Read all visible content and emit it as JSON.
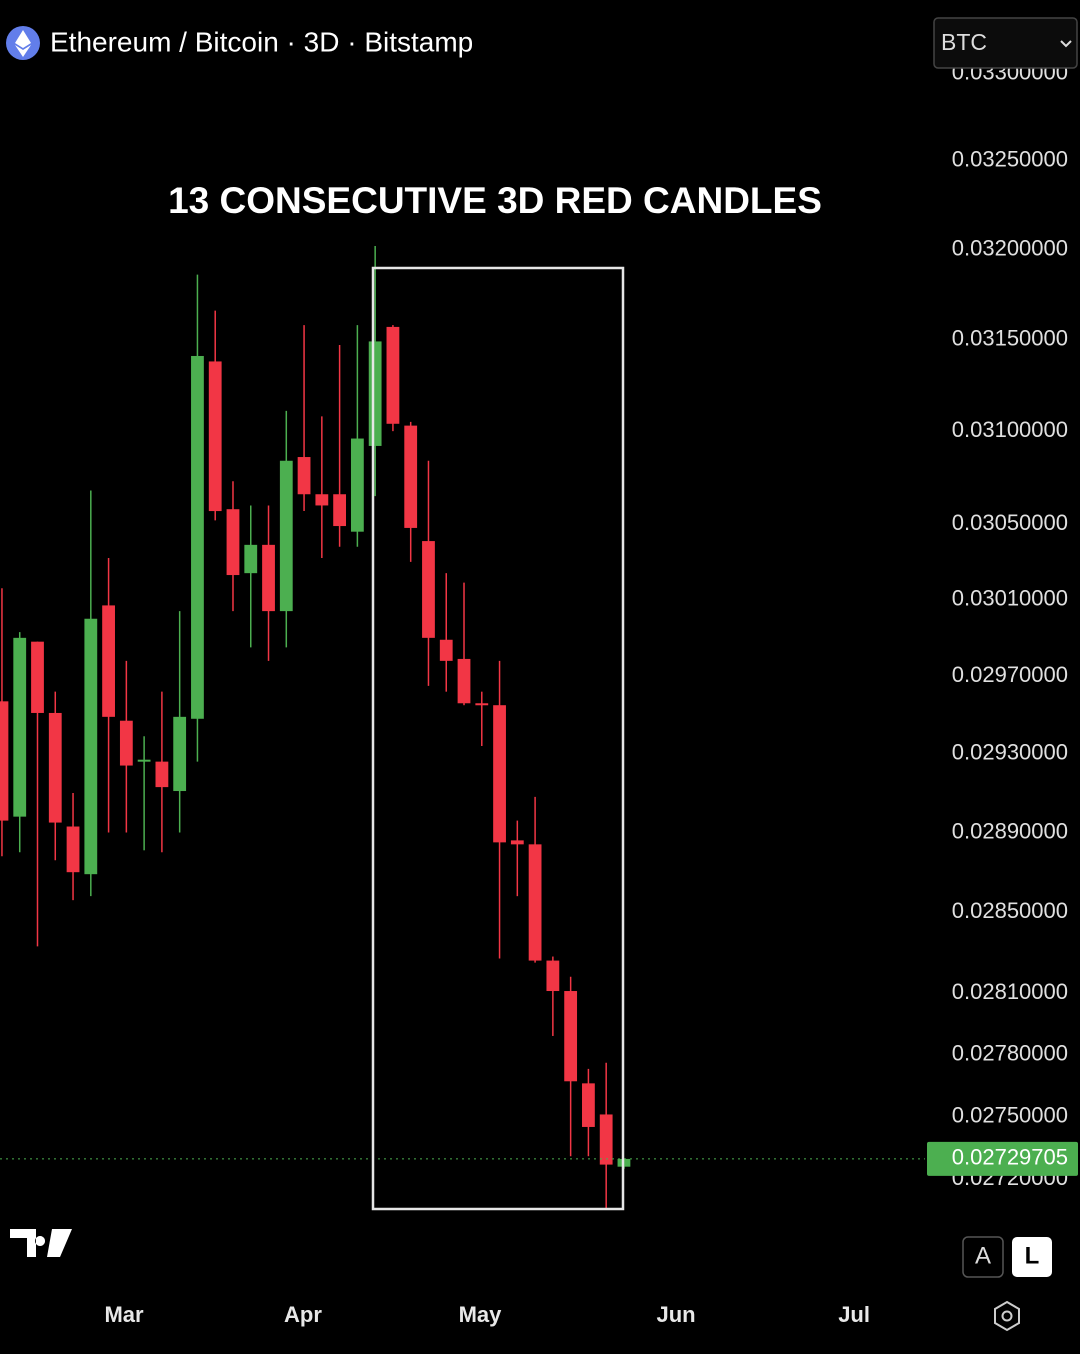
{
  "header": {
    "symbol": "Ethereum / Bitcoin · 3D · Bitstamp",
    "currency": "BTC"
  },
  "chart_data": {
    "type": "candlestick",
    "annotation": "13 CONSECUTIVE 3D RED CANDLES",
    "categories": [
      null,
      null,
      null,
      null,
      null,
      null,
      null,
      null,
      null,
      null,
      null,
      null,
      null,
      null,
      null,
      null,
      null,
      null,
      null,
      null,
      null,
      null,
      null,
      null,
      null,
      null,
      null,
      null,
      null,
      null,
      null,
      null,
      null,
      null,
      null,
      null
    ],
    "open": [
      0.02957,
      0.02898,
      0.02988,
      0.02951,
      0.02893,
      0.02869,
      0.03007,
      0.02947,
      0.02926,
      0.02926,
      0.02911,
      0.02948,
      0.03138,
      0.03058,
      0.03024,
      0.03039,
      0.03004,
      0.03086,
      0.03066,
      0.03066,
      0.03046,
      0.03092,
      0.03157,
      0.03103,
      0.03041,
      0.02989,
      0.02979,
      0.02956,
      0.02955,
      0.02886,
      0.02884,
      0.02826,
      0.02811,
      0.02766,
      0.02751,
      0.02726
    ],
    "high": [
      0.03016,
      0.02993,
      0.02988,
      0.02962,
      0.0291,
      0.03068,
      0.03032,
      0.02978,
      0.02939,
      0.02962,
      0.03004,
      0.03186,
      0.03166,
      0.03073,
      0.0306,
      0.0306,
      0.03111,
      0.03158,
      0.03108,
      0.03147,
      0.03158,
      0.03202,
      0.03158,
      0.03105,
      0.03084,
      0.03024,
      0.03019,
      0.02962,
      0.02978,
      0.02896,
      0.02908,
      0.02828,
      0.02818,
      0.02773,
      0.02776,
      0.0273
    ],
    "low": [
      0.02878,
      0.0288,
      0.02833,
      0.02876,
      0.02856,
      0.02858,
      0.0289,
      0.0289,
      0.02881,
      0.0288,
      0.0289,
      0.02926,
      0.03052,
      0.03004,
      0.02985,
      0.02978,
      0.02985,
      0.03057,
      0.03032,
      0.03038,
      0.03038,
      0.03065,
      0.031,
      0.0303,
      0.02965,
      0.02962,
      0.02955,
      0.02934,
      0.02827,
      0.02858,
      0.02825,
      0.02789,
      0.02731,
      0.02731,
      0.02706,
      0.02725
    ],
    "close": [
      0.02896,
      0.0299,
      0.02951,
      0.02895,
      0.0287,
      0.03,
      0.02949,
      0.02924,
      0.02927,
      0.02913,
      0.02949,
      0.03141,
      0.03057,
      0.03023,
      0.03039,
      0.03004,
      0.03084,
      0.03066,
      0.0306,
      0.03049,
      0.03096,
      0.03149,
      0.03104,
      0.03048,
      0.0299,
      0.02978,
      0.02956,
      0.02955,
      0.02885,
      0.02884,
      0.02826,
      0.02811,
      0.02767,
      0.02745,
      0.02727,
      0.02729705
    ],
    "up_color": "#4caf50",
    "down_color": "#f23645",
    "log_scale": true,
    "grid": false,
    "xlim": [
      -0.11,
      51.94
    ],
    "xticks": [
      {
        "value": 6.87,
        "label": "Mar"
      },
      {
        "value": 16.94,
        "label": "Apr"
      },
      {
        "value": 26.9,
        "label": "May"
      },
      {
        "value": 37.93,
        "label": "Jun"
      },
      {
        "value": 47.95,
        "label": "Jul"
      }
    ],
    "ylim": [
      0.02696,
      0.03302
    ],
    "yticks": [
      {
        "value": 0.033,
        "label": "0.03300000"
      },
      {
        "value": 0.0325,
        "label": "0.03250000"
      },
      {
        "value": 0.032,
        "label": "0.03200000"
      },
      {
        "value": 0.0315,
        "label": "0.03150000"
      },
      {
        "value": 0.031,
        "label": "0.03100000"
      },
      {
        "value": 0.0305,
        "label": "0.03050000"
      },
      {
        "value": 0.0301,
        "label": "0.03010000"
      },
      {
        "value": 0.0297,
        "label": "0.02970000"
      },
      {
        "value": 0.0293,
        "label": "0.02930000"
      },
      {
        "value": 0.0289,
        "label": "0.02890000"
      },
      {
        "value": 0.0285,
        "label": "0.02850000"
      },
      {
        "value": 0.0281,
        "label": "0.02810000"
      },
      {
        "value": 0.0278,
        "label": "0.02780000"
      },
      {
        "value": 0.0275,
        "label": "0.02750000"
      },
      {
        "value": 0.0272,
        "label": "0.02720000"
      }
    ],
    "last_price": {
      "value": 0.02729705,
      "label": "0.02729705"
    }
  },
  "controls": {
    "auto": "A",
    "log": "L"
  }
}
